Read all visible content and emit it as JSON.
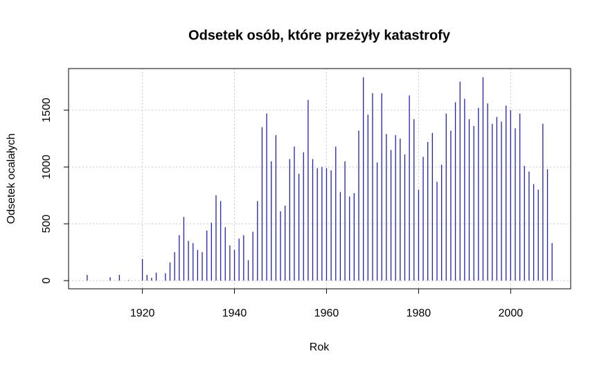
{
  "chart_data": {
    "type": "stem",
    "title": "Odsetek osób, które przeżyły katastrofy",
    "x_label": "Rok",
    "y_label": "Odsetek ocalałych",
    "x": [
      1908,
      1913,
      1915,
      1917,
      1920,
      1921,
      1922,
      1923,
      1925,
      1926,
      1927,
      1928,
      1929,
      1930,
      1931,
      1932,
      1933,
      1934,
      1935,
      1936,
      1937,
      1938,
      1939,
      1940,
      1941,
      1942,
      1943,
      1944,
      1945,
      1946,
      1947,
      1948,
      1949,
      1950,
      1951,
      1952,
      1953,
      1954,
      1955,
      1956,
      1957,
      1958,
      1959,
      1960,
      1961,
      1962,
      1963,
      1964,
      1965,
      1966,
      1967,
      1968,
      1969,
      1970,
      1971,
      1972,
      1973,
      1974,
      1975,
      1976,
      1977,
      1978,
      1979,
      1980,
      1981,
      1982,
      1983,
      1984,
      1985,
      1986,
      1987,
      1988,
      1989,
      1990,
      1991,
      1992,
      1993,
      1994,
      1995,
      1996,
      1997,
      1998,
      1999,
      2000,
      2001,
      2002,
      2003,
      2004,
      2005,
      2006,
      2007,
      2008,
      2009
    ],
    "values": [
      50,
      30,
      50,
      5,
      190,
      50,
      25,
      70,
      65,
      160,
      250,
      400,
      560,
      350,
      330,
      270,
      250,
      440,
      510,
      750,
      700,
      470,
      310,
      270,
      370,
      400,
      180,
      430,
      700,
      1350,
      1470,
      1050,
      1280,
      610,
      660,
      1070,
      1180,
      940,
      1130,
      1590,
      1070,
      990,
      1000,
      990,
      970,
      1180,
      780,
      1050,
      740,
      770,
      1320,
      1790,
      1460,
      1650,
      1040,
      1650,
      1290,
      1150,
      1280,
      1250,
      1110,
      1630,
      1420,
      800,
      1090,
      1220,
      1300,
      870,
      1020,
      1470,
      1320,
      1570,
      1750,
      1600,
      1420,
      1360,
      1520,
      1790,
      1560,
      1380,
      1440,
      1400,
      1540,
      1500,
      1340,
      1470,
      1010,
      960,
      850,
      800,
      1380,
      980,
      330
    ],
    "color": "#1f1fb8",
    "xlim": [
      1903.96,
      2013.04
    ],
    "ylim": [
      -72,
      1866
    ],
    "xticks": [
      1920,
      1940,
      1960,
      1980,
      2000
    ],
    "yticks": [
      0,
      500,
      1000,
      1500
    ],
    "grid": true
  }
}
